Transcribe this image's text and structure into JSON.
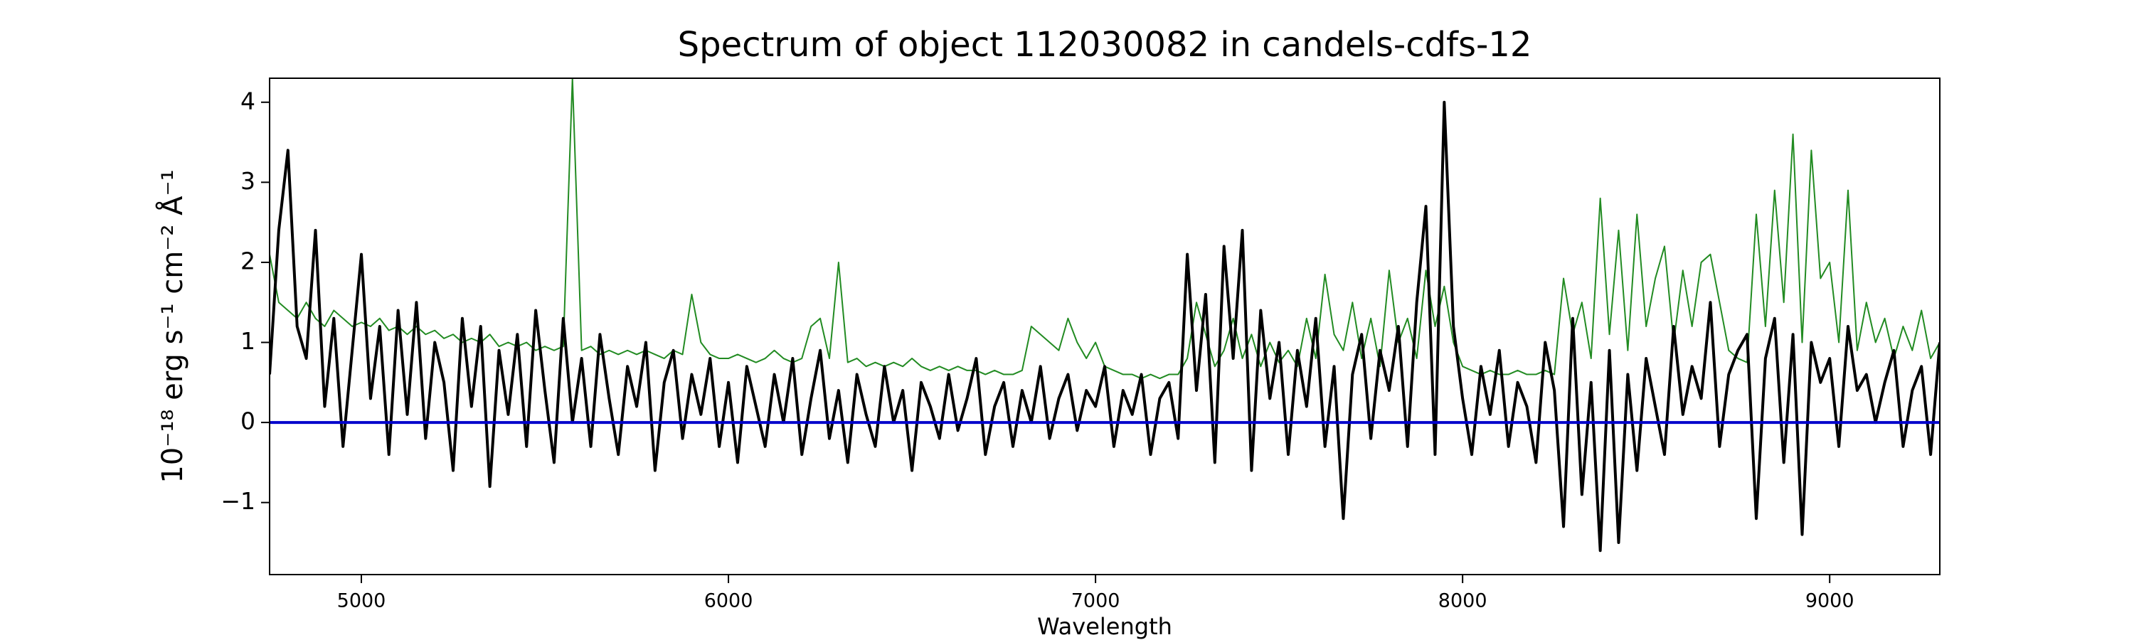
{
  "chart_data": {
    "type": "line",
    "title": "Spectrum of object 112030082 in candels-cdfs-12",
    "xlabel": "Wavelength",
    "ylabel": "10⁻¹⁸ erg s⁻¹ cm⁻² Å⁻¹",
    "x": [
      4750,
      4775,
      4800,
      4825,
      4850,
      4875,
      4900,
      4925,
      4950,
      4975,
      5000,
      5025,
      5050,
      5075,
      5100,
      5125,
      5150,
      5175,
      5200,
      5225,
      5250,
      5275,
      5300,
      5325,
      5350,
      5375,
      5400,
      5425,
      5450,
      5475,
      5500,
      5525,
      5550,
      5575,
      5600,
      5625,
      5650,
      5675,
      5700,
      5725,
      5750,
      5775,
      5800,
      5825,
      5850,
      5875,
      5900,
      5925,
      5950,
      5975,
      6000,
      6025,
      6050,
      6075,
      6100,
      6125,
      6150,
      6175,
      6200,
      6225,
      6250,
      6275,
      6300,
      6325,
      6350,
      6375,
      6400,
      6425,
      6450,
      6475,
      6500,
      6525,
      6550,
      6575,
      6600,
      6625,
      6650,
      6675,
      6700,
      6725,
      6750,
      6775,
      6800,
      6825,
      6850,
      6875,
      6900,
      6925,
      6950,
      6975,
      7000,
      7025,
      7050,
      7075,
      7100,
      7125,
      7150,
      7175,
      7200,
      7225,
      7250,
      7275,
      7300,
      7325,
      7350,
      7375,
      7400,
      7425,
      7450,
      7475,
      7500,
      7525,
      7550,
      7575,
      7600,
      7625,
      7650,
      7675,
      7700,
      7725,
      7750,
      7775,
      7800,
      7825,
      7850,
      7875,
      7900,
      7925,
      7950,
      7975,
      8000,
      8025,
      8050,
      8075,
      8100,
      8125,
      8150,
      8175,
      8200,
      8225,
      8250,
      8275,
      8300,
      8325,
      8350,
      8375,
      8400,
      8425,
      8450,
      8475,
      8500,
      8525,
      8550,
      8575,
      8600,
      8625,
      8650,
      8675,
      8700,
      8725,
      8750,
      8775,
      8800,
      8825,
      8850,
      8875,
      8900,
      8925,
      8950,
      8975,
      9000,
      9025,
      9050,
      9075,
      9100,
      9125,
      9150,
      9175,
      9200,
      9225,
      9250,
      9275,
      9300
    ],
    "series": [
      {
        "color": "#000000",
        "width": 4,
        "values": [
          0.6,
          2.4,
          3.4,
          1.2,
          0.8,
          2.4,
          0.2,
          1.3,
          -0.3,
          0.9,
          2.1,
          0.3,
          1.2,
          -0.4,
          1.4,
          0.1,
          1.5,
          -0.2,
          1.0,
          0.5,
          -0.6,
          1.3,
          0.2,
          1.2,
          -0.8,
          0.9,
          0.1,
          1.1,
          -0.3,
          1.4,
          0.4,
          -0.5,
          1.3,
          0.0,
          0.8,
          -0.3,
          1.1,
          0.3,
          -0.4,
          0.7,
          0.2,
          1.0,
          -0.6,
          0.5,
          0.9,
          -0.2,
          0.6,
          0.1,
          0.8,
          -0.3,
          0.5,
          -0.5,
          0.7,
          0.2,
          -0.3,
          0.6,
          0.0,
          0.8,
          -0.4,
          0.3,
          0.9,
          -0.2,
          0.4,
          -0.5,
          0.6,
          0.1,
          -0.3,
          0.7,
          0.0,
          0.4,
          -0.6,
          0.5,
          0.2,
          -0.2,
          0.6,
          -0.1,
          0.3,
          0.8,
          -0.4,
          0.2,
          0.5,
          -0.3,
          0.4,
          0.0,
          0.7,
          -0.2,
          0.3,
          0.6,
          -0.1,
          0.4,
          0.2,
          0.7,
          -0.3,
          0.4,
          0.1,
          0.6,
          -0.4,
          0.3,
          0.5,
          -0.2,
          2.1,
          0.4,
          1.6,
          -0.5,
          2.2,
          0.8,
          2.4,
          -0.6,
          1.4,
          0.3,
          1.0,
          -0.4,
          0.9,
          0.2,
          1.3,
          -0.3,
          0.7,
          -1.2,
          0.6,
          1.1,
          -0.2,
          0.9,
          0.4,
          1.2,
          -0.3,
          1.5,
          2.7,
          -0.4,
          4.0,
          1.2,
          0.3,
          -0.4,
          0.7,
          0.1,
          0.9,
          -0.3,
          0.5,
          0.2,
          -0.5,
          1.0,
          0.4,
          -1.3,
          1.3,
          -0.9,
          0.5,
          -1.6,
          0.9,
          -1.5,
          0.6,
          -0.6,
          0.8,
          0.2,
          -0.4,
          1.2,
          0.1,
          0.7,
          0.3,
          1.5,
          -0.3,
          0.6,
          0.9,
          1.1,
          -1.2,
          0.8,
          1.3,
          -0.5,
          1.1,
          -1.4,
          1.0,
          0.5,
          0.8,
          -0.3,
          1.2,
          0.4,
          0.6,
          0.0,
          0.5,
          0.9,
          -0.3,
          0.4,
          0.7,
          -0.4,
          1.0
        ]
      },
      {
        "color": "#228b22",
        "width": 2,
        "values": [
          2.1,
          1.5,
          1.4,
          1.3,
          1.5,
          1.3,
          1.2,
          1.4,
          1.3,
          1.2,
          1.25,
          1.2,
          1.3,
          1.15,
          1.2,
          1.1,
          1.2,
          1.1,
          1.15,
          1.05,
          1.1,
          1.0,
          1.05,
          1.0,
          1.1,
          0.95,
          1.0,
          0.95,
          1.0,
          0.9,
          0.95,
          0.9,
          0.95,
          4.3,
          0.9,
          0.95,
          0.85,
          0.9,
          0.85,
          0.9,
          0.85,
          0.9,
          0.85,
          0.8,
          0.9,
          0.85,
          1.6,
          1.0,
          0.85,
          0.8,
          0.8,
          0.85,
          0.8,
          0.75,
          0.8,
          0.9,
          0.8,
          0.75,
          0.8,
          1.2,
          1.3,
          0.8,
          2.0,
          0.75,
          0.8,
          0.7,
          0.75,
          0.7,
          0.75,
          0.7,
          0.8,
          0.7,
          0.65,
          0.7,
          0.65,
          0.7,
          0.65,
          0.65,
          0.6,
          0.65,
          0.6,
          0.6,
          0.65,
          1.2,
          1.1,
          1.0,
          0.9,
          1.3,
          1.0,
          0.8,
          1.0,
          0.7,
          0.65,
          0.6,
          0.6,
          0.55,
          0.6,
          0.55,
          0.6,
          0.6,
          0.8,
          1.5,
          1.1,
          0.7,
          0.9,
          1.3,
          0.8,
          1.1,
          0.7,
          1.0,
          0.75,
          0.9,
          0.7,
          1.3,
          0.8,
          1.85,
          1.1,
          0.9,
          1.5,
          0.8,
          1.3,
          0.7,
          1.9,
          1.0,
          1.3,
          0.8,
          1.9,
          1.2,
          1.7,
          1.0,
          0.7,
          0.65,
          0.6,
          0.65,
          0.6,
          0.6,
          0.65,
          0.6,
          0.6,
          0.65,
          0.6,
          1.8,
          1.1,
          1.5,
          0.8,
          2.8,
          1.1,
          2.4,
          0.9,
          2.6,
          1.2,
          1.8,
          2.2,
          1.0,
          1.9,
          1.2,
          2.0,
          2.1,
          1.5,
          0.9,
          0.8,
          0.75,
          2.6,
          1.2,
          2.9,
          1.5,
          3.6,
          1.0,
          3.4,
          1.8,
          2.0,
          1.0,
          2.9,
          0.9,
          1.5,
          1.0,
          1.3,
          0.8,
          1.2,
          0.9,
          1.4,
          0.8,
          1.0
        ]
      }
    ],
    "hlines": [
      {
        "value": 0,
        "color": "#0000cc",
        "width": 4
      }
    ],
    "xlim": [
      4750,
      9300
    ],
    "xticks": [
      5000,
      6000,
      7000,
      8000,
      9000
    ],
    "ylim": [
      -1.9,
      4.3
    ],
    "yticks": [
      {
        "value": -1,
        "label": "−1"
      },
      0,
      1,
      2,
      3,
      4
    ],
    "grid": false
  }
}
